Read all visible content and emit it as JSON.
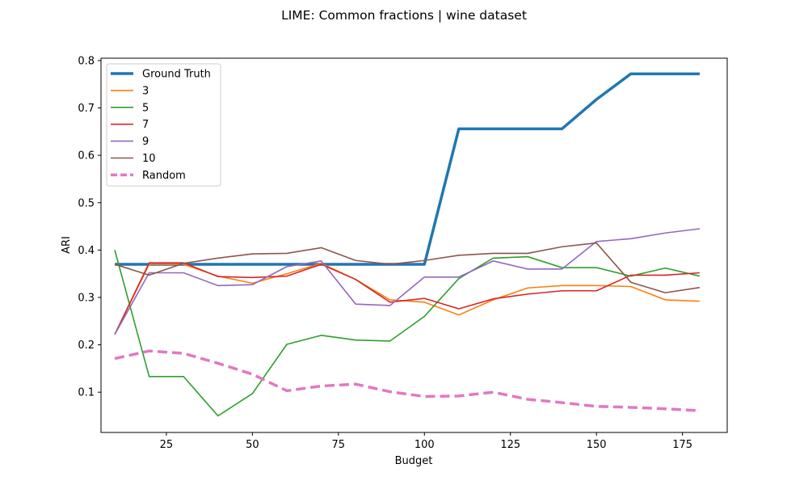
{
  "chart_data": {
    "type": "line",
    "title": "LIME: Common fractions | wine dataset",
    "xlabel": "Budget",
    "ylabel": "ARI",
    "xlim": [
      6,
      188
    ],
    "ylim": [
      0.015,
      0.805
    ],
    "x_ticks": [
      25,
      50,
      75,
      100,
      125,
      150,
      175
    ],
    "y_ticks": [
      0.1,
      0.2,
      0.3,
      0.4,
      0.5,
      0.6,
      0.7,
      0.8
    ],
    "x_tick_labels": [
      "25",
      "50",
      "75",
      "100",
      "125",
      "150",
      "175"
    ],
    "y_tick_labels": [
      "0.1",
      "0.2",
      "0.3",
      "0.4",
      "0.5",
      "0.6",
      "0.7",
      "0.8"
    ],
    "grid": false,
    "legend_position": "top-left",
    "x": [
      10,
      20,
      30,
      40,
      50,
      60,
      70,
      80,
      90,
      100,
      110,
      120,
      130,
      140,
      150,
      160,
      170,
      180
    ],
    "series": [
      {
        "name": "Ground Truth",
        "color": "#1f77b4",
        "style": "solid-thick",
        "values": [
          0.37,
          0.37,
          0.37,
          0.37,
          0.37,
          0.37,
          0.37,
          0.37,
          0.37,
          0.37,
          0.656,
          0.656,
          0.656,
          0.656,
          0.718,
          0.772,
          0.772,
          0.772
        ]
      },
      {
        "name": "3",
        "color": "#ff7f0e",
        "style": "solid",
        "values": [
          0.222,
          0.37,
          0.37,
          0.345,
          0.33,
          0.35,
          0.372,
          0.338,
          0.295,
          0.29,
          0.263,
          0.295,
          0.32,
          0.325,
          0.325,
          0.323,
          0.295,
          0.292
        ]
      },
      {
        "name": "5",
        "color": "#2ca02c",
        "style": "solid",
        "values": [
          0.4,
          0.133,
          0.133,
          0.05,
          0.097,
          0.201,
          0.22,
          0.21,
          0.208,
          0.26,
          0.34,
          0.383,
          0.386,
          0.363,
          0.363,
          0.345,
          0.362,
          0.345
        ]
      },
      {
        "name": "7",
        "color": "#d62728",
        "style": "solid",
        "values": [
          0.222,
          0.373,
          0.373,
          0.344,
          0.342,
          0.345,
          0.37,
          0.338,
          0.29,
          0.298,
          0.276,
          0.297,
          0.307,
          0.314,
          0.314,
          0.347,
          0.347,
          0.352
        ]
      },
      {
        "name": "9",
        "color": "#9467bd",
        "style": "solid",
        "values": [
          0.222,
          0.352,
          0.352,
          0.325,
          0.327,
          0.365,
          0.377,
          0.286,
          0.283,
          0.343,
          0.343,
          0.377,
          0.36,
          0.36,
          0.418,
          0.424,
          0.436,
          0.445
        ]
      },
      {
        "name": "10",
        "color": "#8c564b",
        "style": "solid",
        "values": [
          0.37,
          0.347,
          0.372,
          0.383,
          0.392,
          0.393,
          0.405,
          0.378,
          0.37,
          0.378,
          0.389,
          0.393,
          0.393,
          0.407,
          0.415,
          0.332,
          0.31,
          0.321
        ]
      },
      {
        "name": "Random",
        "color": "#e377c2",
        "style": "dashed-thick",
        "values": [
          0.171,
          0.187,
          0.182,
          0.161,
          0.138,
          0.103,
          0.113,
          0.117,
          0.101,
          0.091,
          0.092,
          0.1,
          0.085,
          0.078,
          0.07,
          0.068,
          0.065,
          0.061
        ]
      }
    ]
  }
}
